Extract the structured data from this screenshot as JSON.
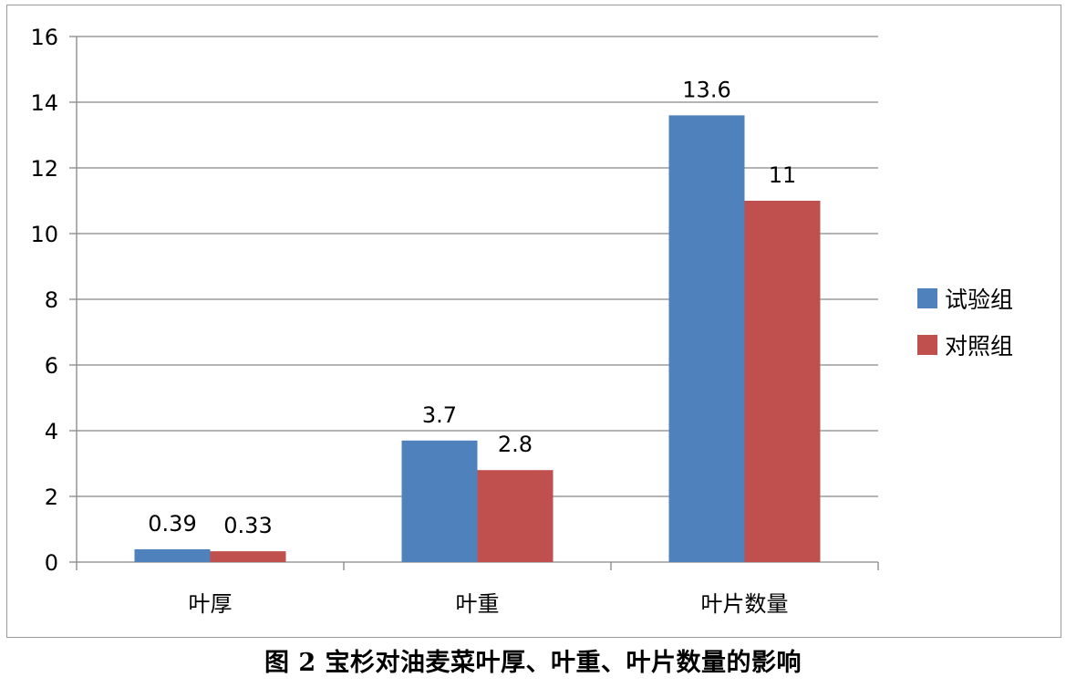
{
  "caption": "图 2  宝杉对油麦菜叶厚、叶重、叶片数量的影响",
  "colors": {
    "series_1": "#4f81bd",
    "series_2": "#c0504d",
    "gridline": "#868686",
    "axis": "#868686"
  },
  "chart_data": {
    "type": "bar",
    "categories": [
      "叶厚",
      "叶重",
      "叶片数量"
    ],
    "series": [
      {
        "name": "试验组",
        "values": [
          0.39,
          3.7,
          13.6
        ],
        "labels": [
          "0.39",
          "3.7",
          "13.6"
        ]
      },
      {
        "name": "对照组",
        "values": [
          0.33,
          2.8,
          11
        ],
        "labels": [
          "0.33",
          "2.8",
          "11"
        ]
      }
    ],
    "yticks": [
      "0",
      "2",
      "4",
      "6",
      "8",
      "10",
      "12",
      "14",
      "16"
    ],
    "ylim": [
      0,
      16
    ],
    "grid": true,
    "legend": "right"
  }
}
